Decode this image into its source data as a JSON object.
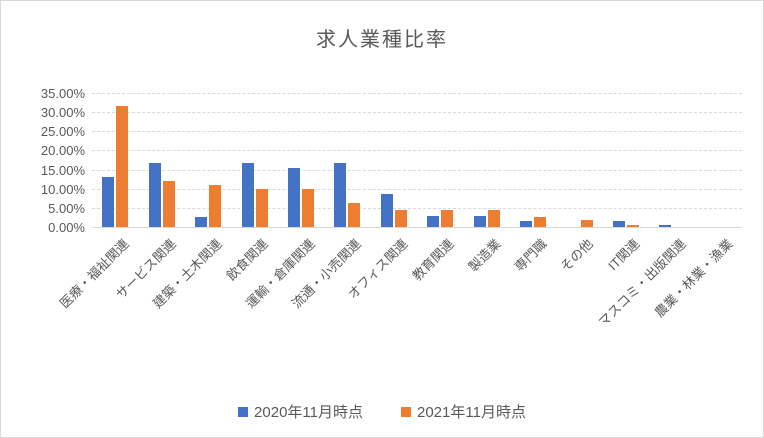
{
  "chart_data": {
    "type": "bar",
    "title": "求人業種比率",
    "categories": [
      "医療・福祉関連",
      "サービス関連",
      "建築・土木関連",
      "飲食関連",
      "運輸・倉庫関連",
      "流通・小売関連",
      "オフィス関連",
      "教育関連",
      "製造業",
      "専門職",
      "その他",
      "IT関連",
      "マスコミ・出版関連",
      "農業・林業・漁業"
    ],
    "series": [
      {
        "name": "2020年11月時点",
        "color": "#4472C4",
        "values": [
          13.0,
          16.7,
          2.5,
          16.8,
          15.5,
          16.7,
          8.5,
          2.8,
          2.8,
          1.5,
          0,
          1.6,
          0.6,
          0
        ]
      },
      {
        "name": "2021年11月時点",
        "color": "#ED7D31",
        "values": [
          31.5,
          12.0,
          11.0,
          9.8,
          9.8,
          6.4,
          4.4,
          4.4,
          4.4,
          2.5,
          1.9,
          0.6,
          0,
          0
        ]
      }
    ],
    "ylabel": "",
    "xlabel": "",
    "ylim": [
      0,
      35
    ],
    "ytick_step": 5,
    "ytick_labels": [
      "0.00%",
      "5.00%",
      "10.00%",
      "15.00%",
      "20.00%",
      "25.00%",
      "30.00%",
      "35.00%"
    ],
    "grid": true,
    "gridline_color": "#D9D9D9",
    "text_color": "#595959",
    "legend_position": "bottom"
  }
}
